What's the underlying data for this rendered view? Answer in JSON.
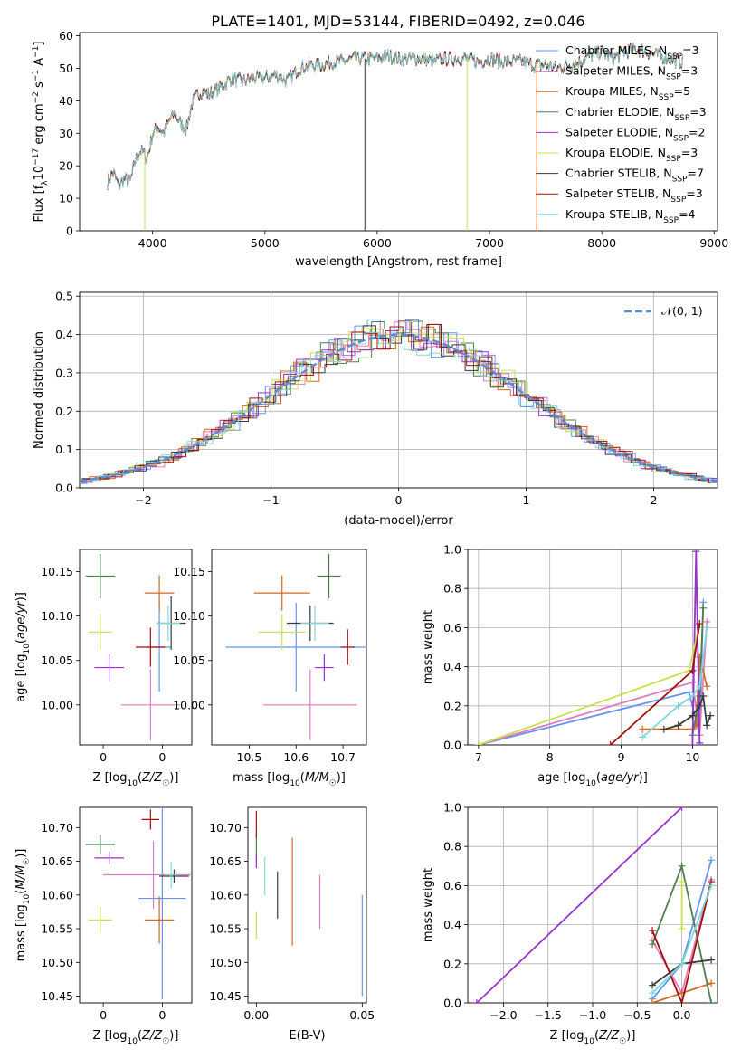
{
  "title": "PLATE=1401, MJD=53144, FIBERID=0492, z=0.046",
  "colors": {
    "Chabrier MILES": "#6495ED",
    "Salpeter MILES": "#E07AC0",
    "Kroupa MILES": "#D2691E",
    "Chabrier ELODIE": "#4F7F4F",
    "Salpeter ELODIE": "#9932CC",
    "Kroupa ELODIE": "#C8E050",
    "Chabrier STELIB": "#3A3A3A",
    "Salpeter STELIB": "#A01010",
    "Kroupa STELIB": "#7FD8D8",
    "normal": "#5B8BD9"
  },
  "chart_data": [
    {
      "id": "spectrum",
      "type": "line",
      "title": "PLATE=1401, MJD=53144, FIBERID=0492, z=0.046",
      "xlabel": "wavelength [Angstrom, rest frame]",
      "ylabel": "Flux [f_λ 10^-17 erg cm^-2 s^-1 A^-1]",
      "xlim": [
        3350,
        9030
      ],
      "ylim": [
        0,
        61
      ],
      "xticks": [
        4000,
        5000,
        6000,
        7000,
        8000,
        9000
      ],
      "yticks": [
        0,
        10,
        20,
        30,
        40,
        50,
        60
      ],
      "legend": {
        "placement": "top-right",
        "entries": [
          {
            "name": "Chabrier MILES",
            "nssp": "3"
          },
          {
            "name": "Salpeter MILES",
            "nssp": "3"
          },
          {
            "name": "Kroupa MILES",
            "nssp": "5"
          },
          {
            "name": "Chabrier ELODIE",
            "nssp": "3"
          },
          {
            "name": "Salpeter ELODIE",
            "nssp": "2"
          },
          {
            "name": "Kroupa ELODIE",
            "nssp": "3"
          },
          {
            "name": "Chabrier STELIB",
            "nssp": "7"
          },
          {
            "name": "Salpeter STELIB",
            "nssp": "3"
          },
          {
            "name": "Kroupa STELIB",
            "nssp": "4"
          }
        ]
      },
      "continuum": [
        [
          3600,
          15
        ],
        [
          3650,
          18
        ],
        [
          3700,
          14
        ],
        [
          3750,
          16
        ],
        [
          3800,
          15
        ],
        [
          3850,
          22
        ],
        [
          3900,
          25
        ],
        [
          3950,
          22
        ],
        [
          4000,
          30
        ],
        [
          4050,
          32
        ],
        [
          4100,
          30
        ],
        [
          4150,
          34
        ],
        [
          4200,
          36
        ],
        [
          4250,
          33
        ],
        [
          4300,
          31
        ],
        [
          4350,
          39
        ],
        [
          4400,
          42
        ],
        [
          4450,
          43
        ],
        [
          4500,
          42
        ],
        [
          4600,
          44
        ],
        [
          4700,
          47
        ],
        [
          4800,
          46
        ],
        [
          4900,
          47
        ],
        [
          5000,
          47
        ],
        [
          5100,
          48
        ],
        [
          5200,
          46
        ],
        [
          5300,
          50
        ],
        [
          5400,
          51
        ],
        [
          5500,
          51
        ],
        [
          5600,
          52
        ],
        [
          5700,
          52
        ],
        [
          5800,
          53
        ],
        [
          5900,
          53
        ],
        [
          6000,
          53
        ],
        [
          6100,
          54
        ],
        [
          6200,
          53
        ],
        [
          6300,
          53
        ],
        [
          6400,
          53
        ],
        [
          6500,
          52
        ],
        [
          6600,
          53
        ],
        [
          6700,
          53
        ],
        [
          6800,
          53
        ],
        [
          6900,
          52
        ],
        [
          7000,
          53
        ],
        [
          7100,
          52
        ],
        [
          7200,
          52
        ],
        [
          7300,
          52
        ],
        [
          7400,
          51
        ],
        [
          7500,
          51
        ],
        [
          7600,
          50
        ],
        [
          7700,
          51
        ],
        [
          7800,
          52
        ],
        [
          7900,
          54
        ],
        [
          8000,
          55
        ],
        [
          8100,
          53
        ],
        [
          8200,
          55
        ],
        [
          8300,
          56
        ],
        [
          8400,
          55
        ],
        [
          8500,
          54
        ],
        [
          8600,
          53
        ],
        [
          8700,
          52
        ]
      ],
      "spikes": [
        [
          3930,
          0
        ],
        [
          5890,
          0
        ],
        [
          6800,
          0
        ],
        [
          7420,
          0
        ]
      ]
    },
    {
      "id": "residuals",
      "type": "line",
      "xlabel": "(data-model)/error",
      "ylabel": "Normed distribution",
      "xlim": [
        -2.5,
        2.5
      ],
      "ylim": [
        0,
        0.51
      ],
      "xticks": [
        -2,
        -1,
        0,
        1,
        2
      ],
      "yticks": [
        0.0,
        0.1,
        0.2,
        0.3,
        0.4,
        0.5
      ],
      "ytick_labels": [
        "0.0",
        "0.1",
        "0.2",
        "0.3",
        "0.4",
        "0.5"
      ],
      "legend": {
        "placement": "top-right",
        "entries": [
          {
            "name": "𝒩(0, 1)"
          }
        ]
      },
      "grid": true
    },
    {
      "id": "age-vs-Z",
      "type": "scatter",
      "xlabel": "Z [log10(Z/Z☉)]",
      "ylabel": "age [log10(age/yr)]",
      "xlim": [
        -0.08,
        0.3
      ],
      "ylim": [
        9.955,
        10.175
      ],
      "xticks": [
        0.0,
        0.2
      ],
      "yticks": [
        10.0,
        10.05,
        10.1,
        10.15
      ],
      "points": [
        {
          "model": "Chabrier MILES",
          "x": 0.19,
          "y": 10.065,
          "xerr": 0.04,
          "yerr": 0.05
        },
        {
          "model": "Salpeter MILES",
          "x": 0.16,
          "y": 10.0,
          "xerr": 0.1,
          "yerr": 0.04
        },
        {
          "model": "Kroupa MILES",
          "x": 0.19,
          "y": 10.126,
          "xerr": 0.05,
          "yerr": 0.02
        },
        {
          "model": "Chabrier ELODIE",
          "x": -0.01,
          "y": 10.145,
          "xerr": 0.05,
          "yerr": 0.025
        },
        {
          "model": "Salpeter ELODIE",
          "x": 0.02,
          "y": 10.042,
          "xerr": 0.05,
          "yerr": 0.015
        },
        {
          "model": "Kroupa ELODIE",
          "x": -0.01,
          "y": 10.082,
          "xerr": 0.04,
          "yerr": 0.02
        },
        {
          "model": "Chabrier STELIB",
          "x": 0.23,
          "y": 10.092,
          "xerr": 0.05,
          "yerr": 0.03
        },
        {
          "model": "Salpeter STELIB",
          "x": 0.16,
          "y": 10.065,
          "xerr": 0.05,
          "yerr": 0.022
        },
        {
          "model": "Kroupa STELIB",
          "x": 0.22,
          "y": 10.092,
          "xerr": 0.04,
          "yerr": 0.02
        }
      ]
    },
    {
      "id": "age-vs-mass",
      "type": "scatter",
      "xlabel": "mass [log10(M/M☉)]",
      "ylabel": "",
      "xlim": [
        10.42,
        10.75
      ],
      "ylim": [
        9.955,
        10.175
      ],
      "xticks": [
        10.5,
        10.6,
        10.7
      ],
      "yticks": [
        10.0,
        10.05,
        10.1,
        10.15
      ],
      "points": [
        {
          "model": "Chabrier MILES",
          "x": 10.6,
          "y": 10.065,
          "xerr": 0.15,
          "yerr": 0.05
        },
        {
          "model": "Salpeter MILES",
          "x": 10.63,
          "y": 10.0,
          "xerr": 0.1,
          "yerr": 0.04
        },
        {
          "model": "Kroupa MILES",
          "x": 10.57,
          "y": 10.126,
          "xerr": 0.06,
          "yerr": 0.02
        },
        {
          "model": "Chabrier ELODIE",
          "x": 10.67,
          "y": 10.145,
          "xerr": 0.025,
          "yerr": 0.025
        },
        {
          "model": "Salpeter ELODIE",
          "x": 10.66,
          "y": 10.042,
          "xerr": 0.02,
          "yerr": 0.015
        },
        {
          "model": "Kroupa ELODIE",
          "x": 10.57,
          "y": 10.082,
          "xerr": 0.05,
          "yerr": 0.02
        },
        {
          "model": "Chabrier STELIB",
          "x": 10.63,
          "y": 10.092,
          "xerr": 0.05,
          "yerr": 0.02
        },
        {
          "model": "Salpeter STELIB",
          "x": 10.71,
          "y": 10.065,
          "xerr": 0.015,
          "yerr": 0.02
        },
        {
          "model": "Kroupa STELIB",
          "x": 10.64,
          "y": 10.092,
          "xerr": 0.03,
          "yerr": 0.02
        }
      ]
    },
    {
      "id": "mass-weight-vs-age",
      "type": "line",
      "xlabel": "age [log10(age/yr)]",
      "ylabel": "mass weight",
      "xlim": [
        6.85,
        10.35
      ],
      "ylim": [
        0.0,
        1.0
      ],
      "xticks": [
        7,
        8,
        9,
        10
      ],
      "yticks": [
        0.0,
        0.2,
        0.4,
        0.6,
        0.8,
        1.0
      ],
      "ytick_labels": [
        "0.0",
        "0.2",
        "0.4",
        "0.6",
        "0.8",
        "1.0"
      ],
      "grid": true,
      "series": [
        {
          "model": "Chabrier MILES",
          "x": [
            7.0,
            9.95,
            10.1,
            10.15
          ],
          "y": [
            0.0,
            0.27,
            0.05,
            0.73
          ]
        },
        {
          "model": "Salpeter MILES",
          "x": [
            7.0,
            10.0,
            10.1,
            10.2
          ],
          "y": [
            0.0,
            0.32,
            0.05,
            0.63
          ]
        },
        {
          "model": "Kroupa MILES",
          "x": [
            9.3,
            10.0,
            10.05,
            10.1,
            10.2
          ],
          "y": [
            0.08,
            0.08,
            0.1,
            0.45,
            0.3
          ]
        },
        {
          "model": "Chabrier ELODIE",
          "x": [
            10.0,
            10.1,
            10.15
          ],
          "y": [
            0.05,
            0.25,
            0.7
          ]
        },
        {
          "model": "Salpeter ELODIE",
          "x": [
            10.0,
            10.05,
            10.1
          ],
          "y": [
            0.0,
            0.99,
            0.01
          ]
        },
        {
          "model": "Kroupa ELODIE",
          "x": [
            7.0,
            9.95,
            10.1
          ],
          "y": [
            0.0,
            0.38,
            0.62
          ]
        },
        {
          "model": "Chabrier STELIB",
          "x": [
            9.6,
            9.8,
            10.0,
            10.1,
            10.15,
            10.2,
            10.25
          ],
          "y": [
            0.08,
            0.1,
            0.15,
            0.2,
            0.25,
            0.1,
            0.15
          ]
        },
        {
          "model": "Salpeter STELIB",
          "x": [
            8.85,
            10.0,
            10.1
          ],
          "y": [
            0.0,
            0.38,
            0.62
          ]
        },
        {
          "model": "Kroupa STELIB",
          "x": [
            9.3,
            9.8,
            10.0,
            10.1,
            10.2
          ],
          "y": [
            0.04,
            0.2,
            0.25,
            0.3,
            0.6
          ]
        }
      ]
    },
    {
      "id": "mass-vs-Z",
      "type": "scatter",
      "xlabel": "Z [log10(Z/Z☉)]",
      "ylabel": "mass [log10(M/M☉)]",
      "xlim": [
        -0.08,
        0.3
      ],
      "ylim": [
        10.44,
        10.73
      ],
      "xticks": [
        0.0,
        0.2
      ],
      "yticks": [
        10.45,
        10.5,
        10.55,
        10.6,
        10.65,
        10.7
      ],
      "ytick_labels": [
        "10.45",
        "10.50",
        "10.55",
        "10.60",
        "10.65",
        "10.70"
      ],
      "points": [
        {
          "model": "Chabrier MILES",
          "x": 0.2,
          "y": 10.595,
          "xerr": 0.08,
          "yerr": 0.15
        },
        {
          "model": "Salpeter MILES",
          "x": 0.17,
          "y": 10.63,
          "xerr": 0.17,
          "yerr": 0.05
        },
        {
          "model": "Kroupa MILES",
          "x": 0.19,
          "y": 10.563,
          "xerr": 0.05,
          "yerr": 0.035
        },
        {
          "model": "Chabrier ELODIE",
          "x": -0.01,
          "y": 10.675,
          "xerr": 0.05,
          "yerr": 0.015
        },
        {
          "model": "Salpeter ELODIE",
          "x": 0.02,
          "y": 10.655,
          "xerr": 0.05,
          "yerr": 0.01
        },
        {
          "model": "Kroupa ELODIE",
          "x": -0.01,
          "y": 10.563,
          "xerr": 0.04,
          "yerr": 0.02
        },
        {
          "model": "Chabrier STELIB",
          "x": 0.24,
          "y": 10.628,
          "xerr": 0.05,
          "yerr": 0.01
        },
        {
          "model": "Salpeter STELIB",
          "x": 0.16,
          "y": 10.712,
          "xerr": 0.03,
          "yerr": 0.015
        },
        {
          "model": "Kroupa STELIB",
          "x": 0.23,
          "y": 10.63,
          "xerr": 0.02,
          "yerr": 0.02
        }
      ]
    },
    {
      "id": "mass-vs-EBV",
      "type": "scatter",
      "xlabel": "E(B-V)",
      "ylabel": "",
      "xlim": [
        -0.004,
        0.052
      ],
      "ylim": [
        10.44,
        10.73
      ],
      "xticks": [
        0.0,
        0.05
      ],
      "xtick_labels": [
        "0.00",
        "0.05"
      ],
      "yticks": [
        10.45,
        10.5,
        10.55,
        10.6,
        10.65,
        10.7
      ],
      "ytick_labels": [
        "10.45",
        "10.50",
        "10.55",
        "10.60",
        "10.65",
        "10.70"
      ],
      "points": [
        {
          "model": "Chabrier MILES",
          "x": 0.05,
          "y": 10.525,
          "yerr": 0.075
        },
        {
          "model": "Salpeter MILES",
          "x": 0.03,
          "y": 10.59,
          "yerr": 0.04
        },
        {
          "model": "Kroupa MILES",
          "x": 0.017,
          "y": 10.605,
          "yerr": 0.08
        },
        {
          "model": "Chabrier ELODIE",
          "x": 0.0,
          "y": 10.672,
          "yerr": 0.02
        },
        {
          "model": "Salpeter ELODIE",
          "x": 0.0,
          "y": 10.65,
          "yerr": 0.01
        },
        {
          "model": "Kroupa ELODIE",
          "x": 0.0,
          "y": 10.555,
          "yerr": 0.02
        },
        {
          "model": "Chabrier STELIB",
          "x": 0.01,
          "y": 10.6,
          "yerr": 0.035
        },
        {
          "model": "Salpeter STELIB",
          "x": 0.0,
          "y": 10.705,
          "yerr": 0.02
        },
        {
          "model": "Kroupa STELIB",
          "x": 0.004,
          "y": 10.628,
          "yerr": 0.028
        }
      ]
    },
    {
      "id": "mass-weight-vs-Z",
      "type": "line",
      "xlabel": "Z [log10(Z/Z☉)]",
      "ylabel": "mass weight",
      "xlim": [
        -2.4,
        0.4
      ],
      "ylim": [
        0.0,
        1.0
      ],
      "xticks": [
        -2.0,
        -1.5,
        -1.0,
        -0.5,
        0.0
      ],
      "xtick_labels": [
        "−2.0",
        "−1.5",
        "−1.0",
        "−0.5",
        "0.0"
      ],
      "yticks": [
        0.0,
        0.2,
        0.4,
        0.6,
        0.8,
        1.0
      ],
      "ytick_labels": [
        "0.0",
        "0.2",
        "0.4",
        "0.6",
        "0.8",
        "1.0"
      ],
      "grid": true,
      "series": [
        {
          "model": "Chabrier MILES",
          "x": [
            -0.33,
            0.0,
            0.33
          ],
          "y": [
            0.02,
            0.2,
            0.73
          ]
        },
        {
          "model": "Salpeter MILES",
          "x": [
            -0.33,
            0.0,
            0.33
          ],
          "y": [
            0.32,
            0.05,
            0.63
          ]
        },
        {
          "model": "Kroupa MILES",
          "x": [
            -0.33,
            0.0,
            0.33
          ],
          "y": [
            0.0,
            0.05,
            0.1
          ]
        },
        {
          "model": "Chabrier ELODIE",
          "x": [
            -0.33,
            0.0,
            0.33
          ],
          "y": [
            0.3,
            0.7,
            0.0
          ]
        },
        {
          "model": "Salpeter ELODIE",
          "x": [
            -2.3,
            0.0
          ],
          "y": [
            0.0,
            1.0
          ]
        },
        {
          "model": "Kroupa ELODIE",
          "x": [
            0.0,
            0.0
          ],
          "y": [
            0.62,
            0.38
          ]
        },
        {
          "model": "Chabrier STELIB",
          "x": [
            -0.33,
            0.0,
            0.33
          ],
          "y": [
            0.09,
            0.2,
            0.22
          ]
        },
        {
          "model": "Salpeter STELIB",
          "x": [
            -0.33,
            0.0,
            0.33
          ],
          "y": [
            0.37,
            0.0,
            0.62
          ]
        },
        {
          "model": "Kroupa STELIB",
          "x": [
            -0.33,
            0.0,
            0.33
          ],
          "y": [
            0.05,
            0.2,
            0.6
          ]
        }
      ]
    }
  ]
}
